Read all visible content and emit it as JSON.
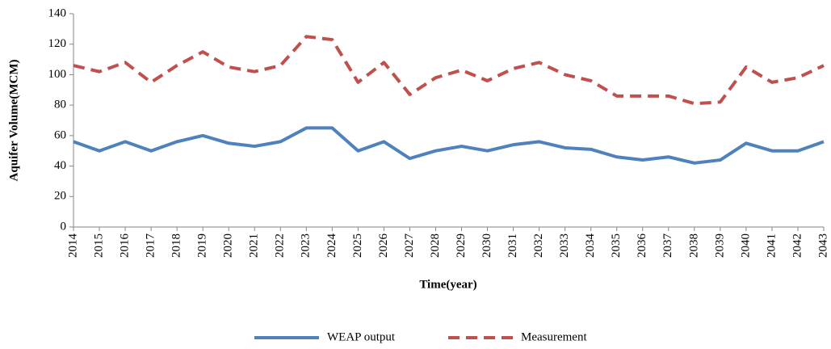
{
  "chart_data": {
    "type": "line",
    "x_label": "Time(year)",
    "y_label": "Aquifer Volume(MCM)",
    "categories": [
      "2014",
      "2015",
      "2016",
      "2017",
      "2018",
      "2019",
      "2020",
      "2021",
      "2022",
      "2023",
      "2024",
      "2025",
      "2026",
      "2027",
      "2028",
      "2029",
      "2030",
      "2031",
      "2032",
      "2033",
      "2034",
      "2035",
      "2036",
      "2037",
      "2038",
      "2039",
      "2040",
      "2041",
      "2042",
      "2043"
    ],
    "series": [
      {
        "name": "WEAP output",
        "color": "#4f81bd",
        "dash": false,
        "values": [
          56,
          50,
          56,
          50,
          56,
          60,
          55,
          53,
          56,
          65,
          65,
          50,
          56,
          45,
          50,
          53,
          50,
          54,
          56,
          52,
          51,
          46,
          44,
          46,
          42,
          44,
          55,
          50,
          50,
          56
        ]
      },
      {
        "name": "Measurement",
        "color": "#c0504d",
        "dash": true,
        "values": [
          106,
          102,
          108,
          95,
          106,
          115,
          105,
          102,
          106,
          125,
          123,
          95,
          108,
          87,
          98,
          103,
          96,
          104,
          108,
          100,
          96,
          86,
          86,
          86,
          81,
          82,
          105,
          95,
          98,
          106
        ]
      }
    ],
    "ylim": [
      0,
      140
    ],
    "yticks": [
      0,
      20,
      40,
      60,
      80,
      100,
      120,
      140
    ],
    "grid": false,
    "legend": "bottom"
  }
}
